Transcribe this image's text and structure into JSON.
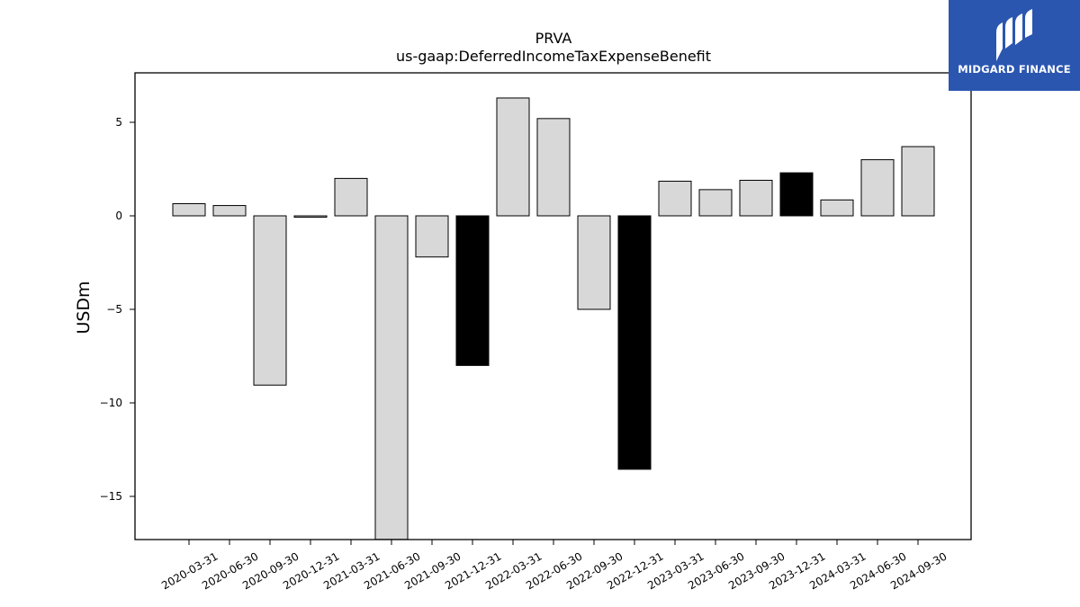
{
  "chart_data": {
    "type": "bar",
    "title": "PRVA",
    "subtitle": "us-gaap:DeferredIncomeTaxExpenseBenefit",
    "xlabel": "",
    "ylabel": "USDm",
    "ylim": [
      -17.3,
      7.6
    ],
    "yticks": [
      5,
      0,
      -5,
      -10,
      -15
    ],
    "ytick_labels": [
      "5",
      "0",
      "−5",
      "−10",
      "−15"
    ],
    "grid": false,
    "categories": [
      "2020-03-31",
      "2020-06-30",
      "2020-09-30",
      "2020-12-31",
      "2021-03-31",
      "2021-06-30",
      "2021-09-30",
      "2021-12-31",
      "2022-03-31",
      "2022-06-30",
      "2022-09-30",
      "2022-12-31",
      "2023-03-31",
      "2023-06-30",
      "2023-09-30",
      "2023-12-31",
      "2024-03-31",
      "2024-06-30",
      "2024-09-30"
    ],
    "values": [
      0.65,
      0.55,
      -9.05,
      -0.05,
      2.0,
      -17.3,
      -2.2,
      -8.0,
      6.3,
      5.2,
      -5.0,
      -13.55,
      1.85,
      1.4,
      1.9,
      2.3,
      0.85,
      3.0,
      3.7
    ],
    "highlight": [
      false,
      false,
      false,
      false,
      false,
      false,
      false,
      true,
      false,
      false,
      false,
      true,
      false,
      false,
      false,
      true,
      false,
      false,
      false
    ],
    "colors": {
      "bar": "#d8d8d8",
      "highlight": "#000000",
      "edge": "#000000"
    }
  },
  "logo": {
    "text": "MIDGARD FINANCE",
    "background": "#2a56b0"
  }
}
